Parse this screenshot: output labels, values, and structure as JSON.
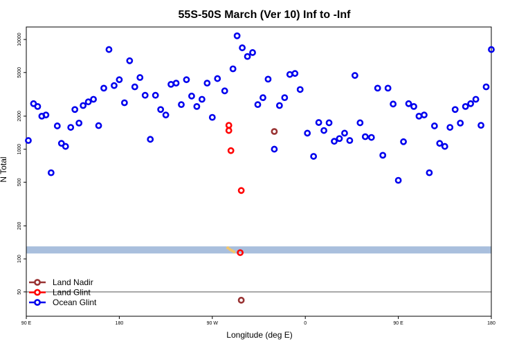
{
  "chart_data": {
    "type": "scatter",
    "title": "55S-50S March (Ver 10)   Inf to -Inf",
    "xlabel": "Longitude (deg E)",
    "ylabel": "N Total",
    "x_ticks": [
      {
        "value": 90,
        "label": "90 E"
      },
      {
        "value": 180,
        "label": "180"
      },
      {
        "value": 270,
        "label": "90 W"
      },
      {
        "value": 360,
        "label": "0"
      },
      {
        "value": 450,
        "label": "90 E"
      },
      {
        "value": 540,
        "label": "180"
      }
    ],
    "y_ticks": [
      {
        "value": 50,
        "label": "50"
      },
      {
        "value": 100,
        "label": "100"
      },
      {
        "value": 200,
        "label": "200"
      },
      {
        "value": 500,
        "label": "500"
      },
      {
        "value": 1000,
        "label": "1000"
      },
      {
        "value": 2000,
        "label": "2000"
      },
      {
        "value": 5000,
        "label": "5000"
      },
      {
        "value": 10000,
        "label": "10000"
      }
    ],
    "xlim": [
      90,
      540
    ],
    "ylim": [
      30,
      13000
    ],
    "y_scale": "log",
    "reference_line": 50,
    "band": {
      "y_low": 112,
      "y_high": 130,
      "color": "#a9bfdd"
    },
    "legend_position": "bottom-left",
    "series": [
      {
        "name": "Land Nadir",
        "color": "#993333",
        "points": [
          [
            330,
            1450
          ],
          [
            298,
            42
          ]
        ]
      },
      {
        "name": "Land Glint",
        "color": "#ff0000",
        "points": [
          [
            286,
            1650
          ],
          [
            286,
            1480
          ],
          [
            288,
            970
          ],
          [
            298,
            420
          ],
          [
            297,
            114
          ]
        ]
      },
      {
        "name": "Ocean Glint",
        "color": "#0000ee",
        "points": [
          [
            92,
            1200
          ],
          [
            97,
            2600
          ],
          [
            101,
            2450
          ],
          [
            105,
            2000
          ],
          [
            109,
            2050
          ],
          [
            114,
            610
          ],
          [
            120,
            1630
          ],
          [
            124,
            1130
          ],
          [
            128,
            1060
          ],
          [
            133,
            1580
          ],
          [
            137,
            2300
          ],
          [
            141,
            1730
          ],
          [
            145,
            2500
          ],
          [
            150,
            2700
          ],
          [
            155,
            2850
          ],
          [
            160,
            1640
          ],
          [
            165,
            3600
          ],
          [
            170,
            8100
          ],
          [
            175,
            3800
          ],
          [
            180,
            4300
          ],
          [
            185,
            2650
          ],
          [
            190,
            6400
          ],
          [
            195,
            3700
          ],
          [
            200,
            4500
          ],
          [
            205,
            3100
          ],
          [
            210,
            1230
          ],
          [
            215,
            3100
          ],
          [
            220,
            2300
          ],
          [
            225,
            2050
          ],
          [
            230,
            3900
          ],
          [
            235,
            4000
          ],
          [
            240,
            2550
          ],
          [
            245,
            4300
          ],
          [
            250,
            3050
          ],
          [
            255,
            2450
          ],
          [
            260,
            2850
          ],
          [
            265,
            4000
          ],
          [
            270,
            1950
          ],
          [
            275,
            4400
          ],
          [
            282,
            3400
          ],
          [
            290,
            5400
          ],
          [
            294,
            10800
          ],
          [
            299,
            8400
          ],
          [
            304,
            7000
          ],
          [
            309,
            7600
          ],
          [
            314,
            2550
          ],
          [
            319,
            2950
          ],
          [
            324,
            4350
          ],
          [
            330,
            1000
          ],
          [
            335,
            2500
          ],
          [
            340,
            2950
          ],
          [
            345,
            4800
          ],
          [
            350,
            4900
          ],
          [
            355,
            3500
          ],
          [
            362,
            1400
          ],
          [
            368,
            860
          ],
          [
            373,
            1750
          ],
          [
            378,
            1480
          ],
          [
            383,
            1740
          ],
          [
            388,
            1180
          ],
          [
            393,
            1250
          ],
          [
            398,
            1400
          ],
          [
            403,
            1200
          ],
          [
            408,
            4700
          ],
          [
            413,
            1740
          ],
          [
            418,
            1300
          ],
          [
            424,
            1280
          ],
          [
            430,
            3600
          ],
          [
            435,
            880
          ],
          [
            440,
            3600
          ],
          [
            445,
            2580
          ],
          [
            450,
            520
          ],
          [
            455,
            1170
          ],
          [
            460,
            2600
          ],
          [
            465,
            2450
          ],
          [
            470,
            2000
          ],
          [
            475,
            2050
          ],
          [
            480,
            610
          ],
          [
            485,
            1630
          ],
          [
            490,
            1130
          ],
          [
            495,
            1060
          ],
          [
            500,
            1580
          ],
          [
            505,
            2300
          ],
          [
            510,
            1730
          ],
          [
            515,
            2450
          ],
          [
            520,
            2600
          ],
          [
            525,
            2850
          ],
          [
            530,
            1650
          ],
          [
            535,
            3700
          ],
          [
            540,
            8100
          ]
        ]
      }
    ],
    "band_marks": {
      "color": "#f2c66d",
      "points": [
        [
          285,
          126
        ],
        [
          287,
          122
        ],
        [
          289,
          119
        ],
        [
          291,
          116
        ]
      ]
    }
  }
}
